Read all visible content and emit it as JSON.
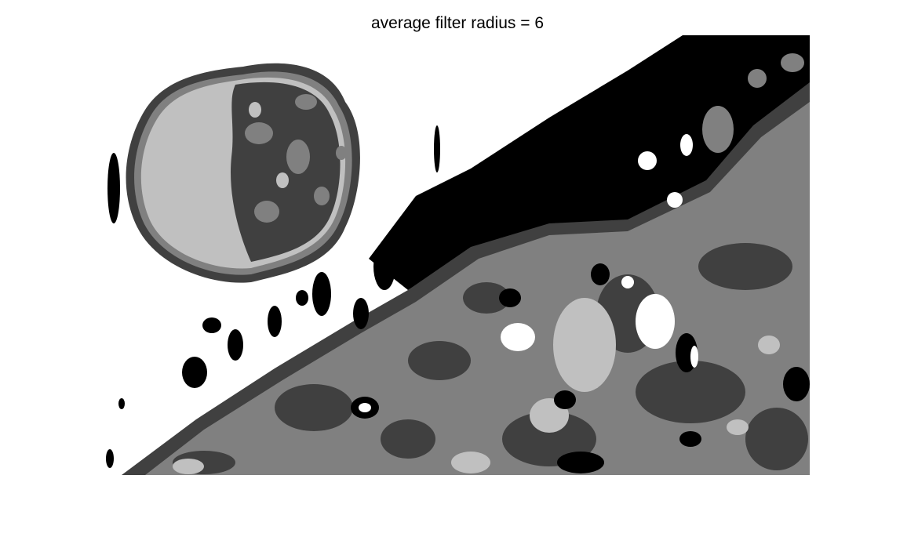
{
  "title": "average filter radius = 6"
}
